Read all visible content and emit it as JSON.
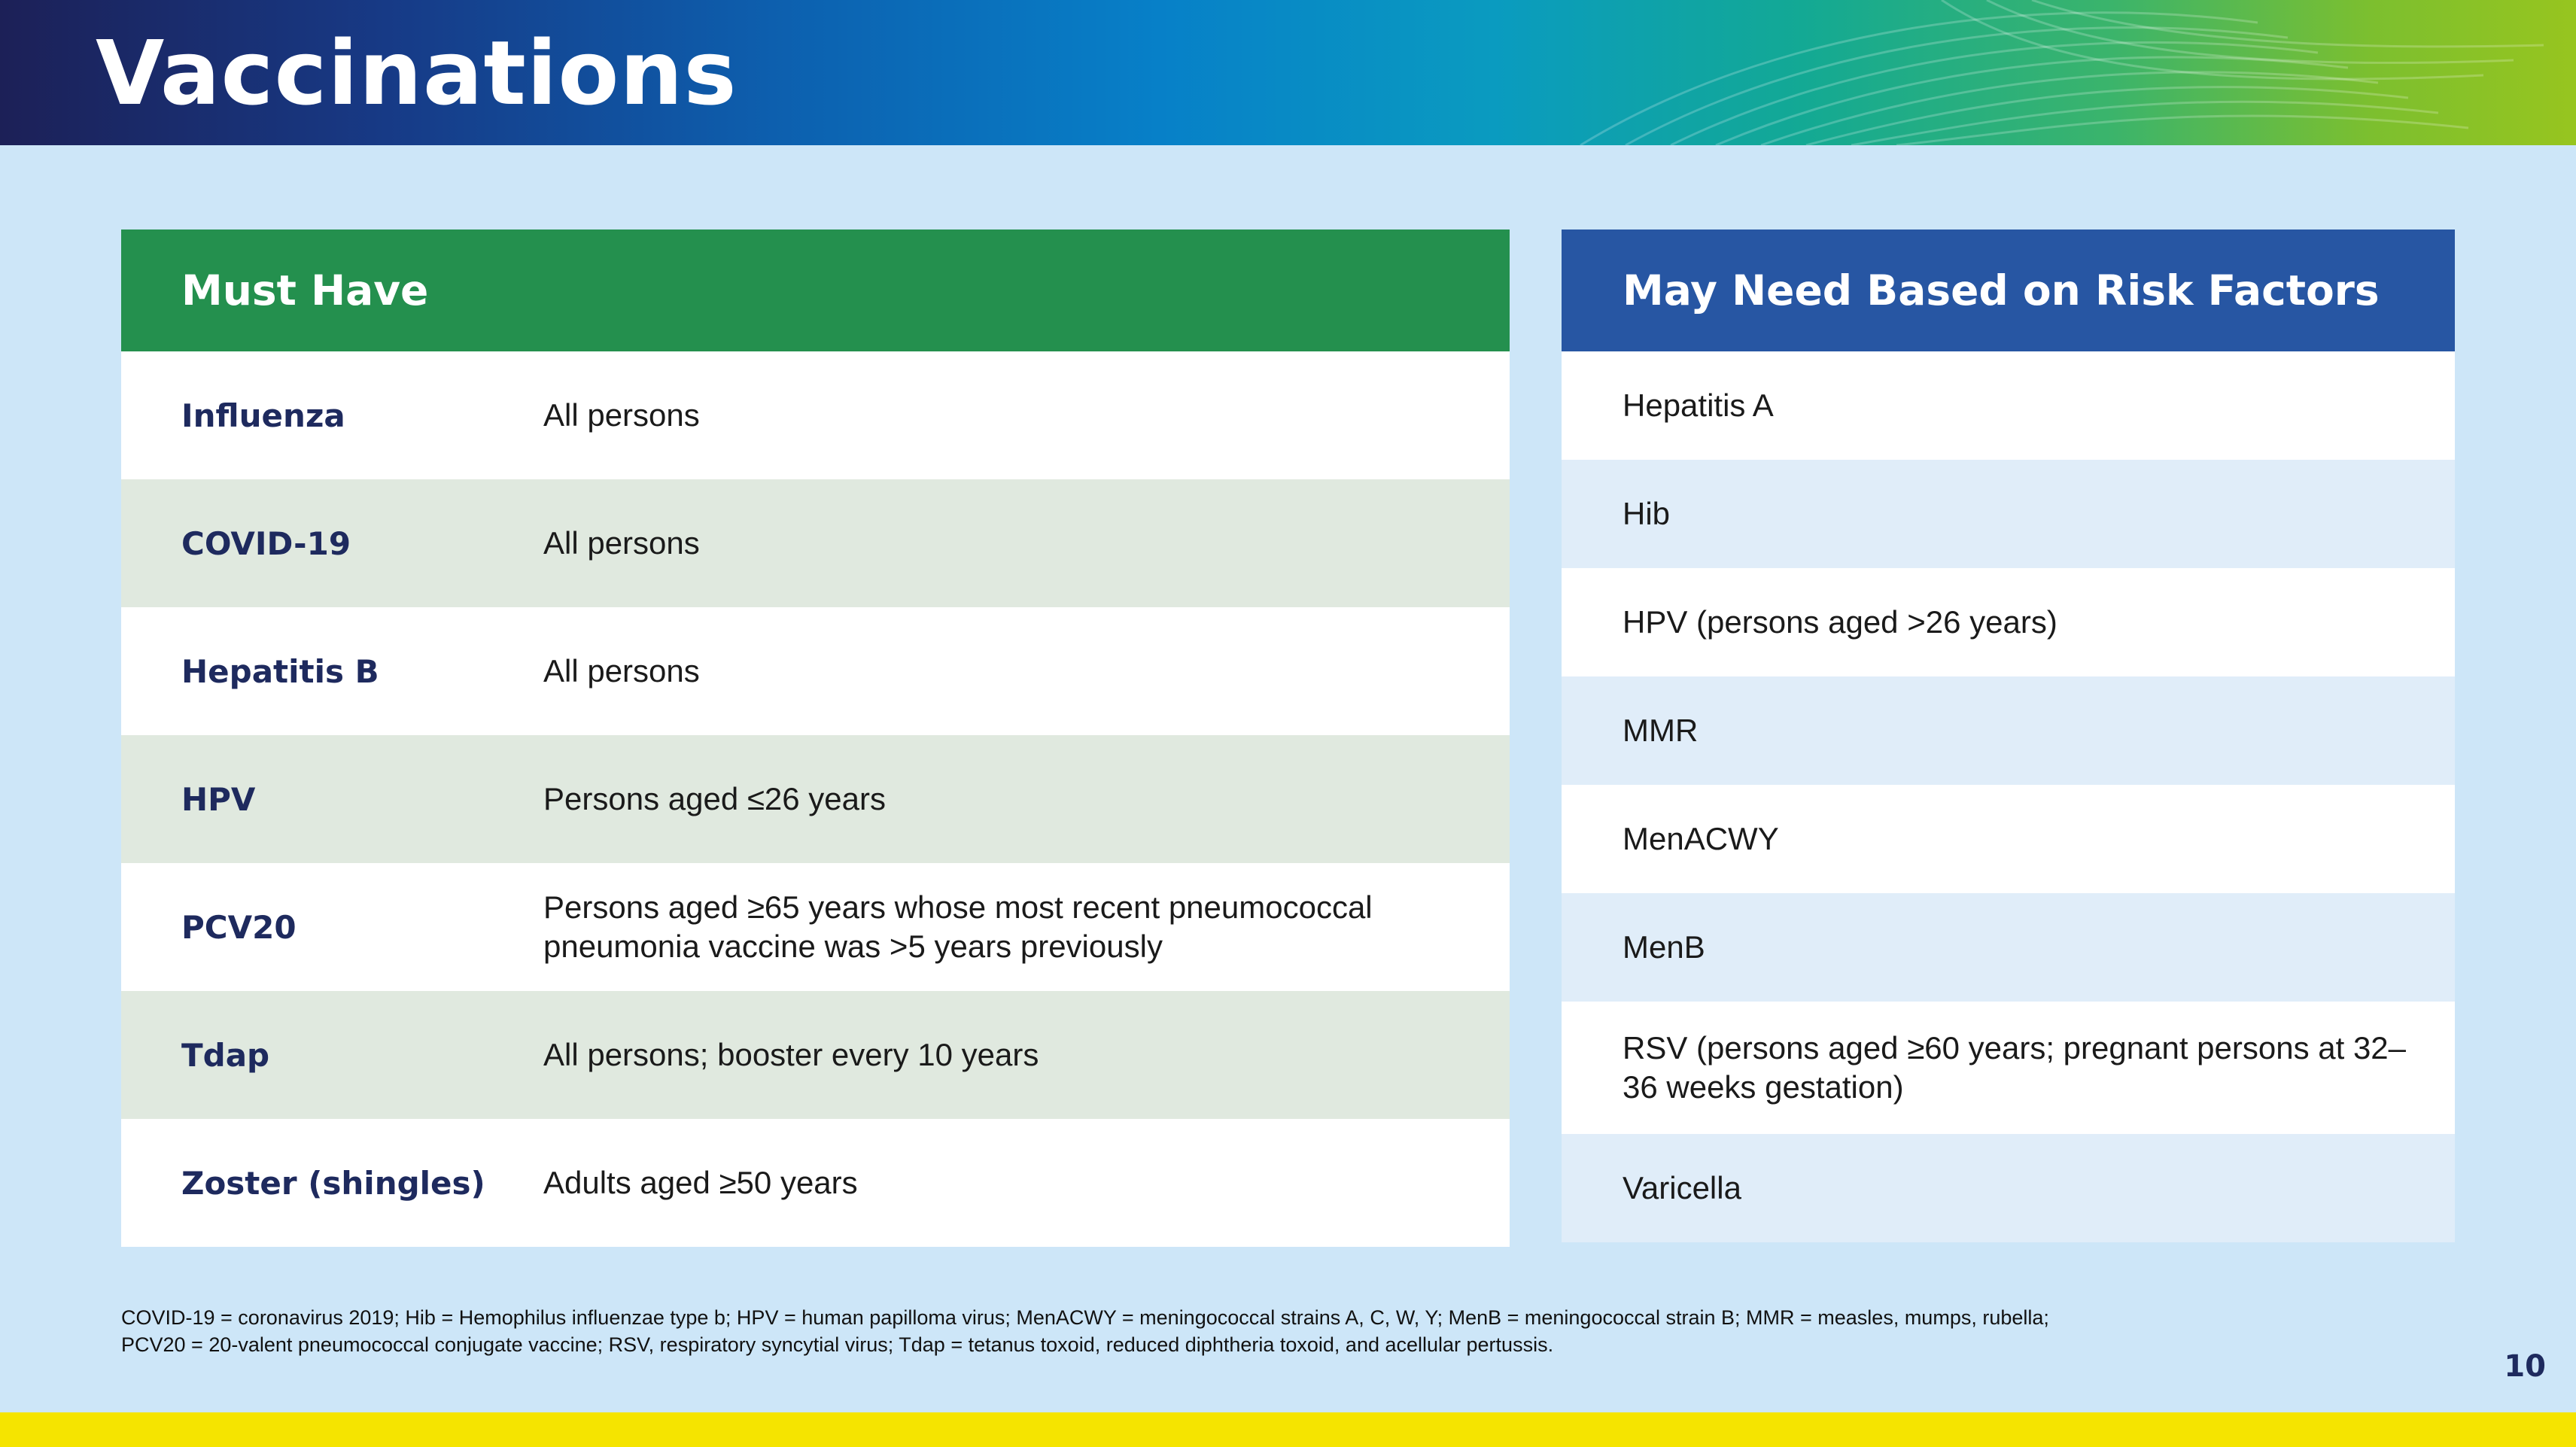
{
  "header": {
    "title": "Vaccinations"
  },
  "must_have": {
    "heading": "Must Have",
    "rows": [
      {
        "name": "Influenza",
        "recommendation": "All persons"
      },
      {
        "name": "COVID-19",
        "recommendation": "All persons"
      },
      {
        "name": "Hepatitis B",
        "recommendation": "All persons"
      },
      {
        "name": "HPV",
        "recommendation": "Persons aged ≤26 years"
      },
      {
        "name": "PCV20",
        "recommendation": "Persons aged ≥65 years whose most recent pneumococcal pneumonia vaccine was >5 years previously"
      },
      {
        "name": "Tdap",
        "recommendation": "All persons; booster every 10 years"
      },
      {
        "name": "Zoster (shingles)",
        "recommendation": "Adults aged ≥50 years"
      }
    ]
  },
  "risk_factors": {
    "heading": "May Need Based on Risk Factors",
    "items": [
      "Hepatitis A",
      "Hib",
      "HPV (persons aged >26 years)",
      "MMR",
      "MenACWY",
      "MenB",
      "RSV (persons aged ≥60 years; pregnant persons at 32–36 weeks gestation)",
      "Varicella"
    ]
  },
  "footnote": {
    "line1": "COVID-19 = coronavirus 2019; Hib = Hemophilus influenzae type b; HPV = human papilloma virus; MenACWY = meningococcal strains A, C, W, Y; MenB = meningococcal strain B; MMR = measles, mumps, rubella;",
    "line2": "PCV20 = 20-valent pneumococcal conjugate vaccine; RSV, respiratory syncytial virus; Tdap = tetanus toxoid, reduced diphtheria toxoid, and acellular pertussis."
  },
  "page_number": "10",
  "colors": {
    "must_have_header": "#24904e",
    "risk_header": "#2756a3",
    "background": "#cde6f8",
    "bottom_bar": "#f5e400",
    "name_text": "#1e2a5e"
  }
}
